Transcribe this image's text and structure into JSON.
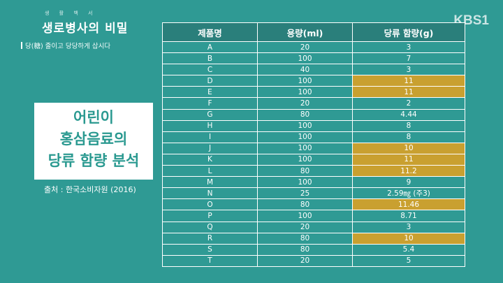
{
  "logo": {
    "ruby": "생 활 백 서",
    "main": "생로병사의 비밀",
    "sub": "당(糖) 줄이고 당당하게 삽시다"
  },
  "channel": "KBS1",
  "title_lines": [
    "어린이",
    "홍삼음료의",
    "당류 함량 분석"
  ],
  "source": "출처 : 한국소비자원 (2016)",
  "table": {
    "headers": [
      "제품명",
      "용량(ml)",
      "당류 함량(g)"
    ],
    "rows": [
      {
        "name": "A",
        "volume": "20",
        "sugar": "3",
        "highlight": false
      },
      {
        "name": "B",
        "volume": "100",
        "sugar": "7",
        "highlight": false
      },
      {
        "name": "C",
        "volume": "40",
        "sugar": "3",
        "highlight": false
      },
      {
        "name": "D",
        "volume": "100",
        "sugar": "11",
        "highlight": true
      },
      {
        "name": "E",
        "volume": "100",
        "sugar": "11",
        "highlight": true
      },
      {
        "name": "F",
        "volume": "20",
        "sugar": "2",
        "highlight": false
      },
      {
        "name": "G",
        "volume": "80",
        "sugar": "4.44",
        "highlight": false
      },
      {
        "name": "H",
        "volume": "100",
        "sugar": "8",
        "highlight": false
      },
      {
        "name": "I",
        "volume": "100",
        "sugar": "8",
        "highlight": false
      },
      {
        "name": "J",
        "volume": "100",
        "sugar": "10",
        "highlight": true
      },
      {
        "name": "K",
        "volume": "100",
        "sugar": "11",
        "highlight": true
      },
      {
        "name": "L",
        "volume": "80",
        "sugar": "11.2",
        "highlight": true
      },
      {
        "name": "M",
        "volume": "100",
        "sugar": "9",
        "highlight": false
      },
      {
        "name": "N",
        "volume": "25",
        "sugar": "2.59㎎ (주3)",
        "highlight": false
      },
      {
        "name": "O",
        "volume": "80",
        "sugar": "11.46",
        "highlight": true
      },
      {
        "name": "P",
        "volume": "100",
        "sugar": "8.71",
        "highlight": false
      },
      {
        "name": "Q",
        "volume": "20",
        "sugar": "3",
        "highlight": false
      },
      {
        "name": "R",
        "volume": "80",
        "sugar": "10",
        "highlight": true
      },
      {
        "name": "S",
        "volume": "80",
        "sugar": "5.4",
        "highlight": false
      },
      {
        "name": "T",
        "volume": "20",
        "sugar": "5",
        "highlight": false
      }
    ]
  },
  "colors": {
    "background": "#2f9a94",
    "header": "#2a7f7b",
    "highlight": "#c9a030",
    "title_text": "#2a9990"
  }
}
